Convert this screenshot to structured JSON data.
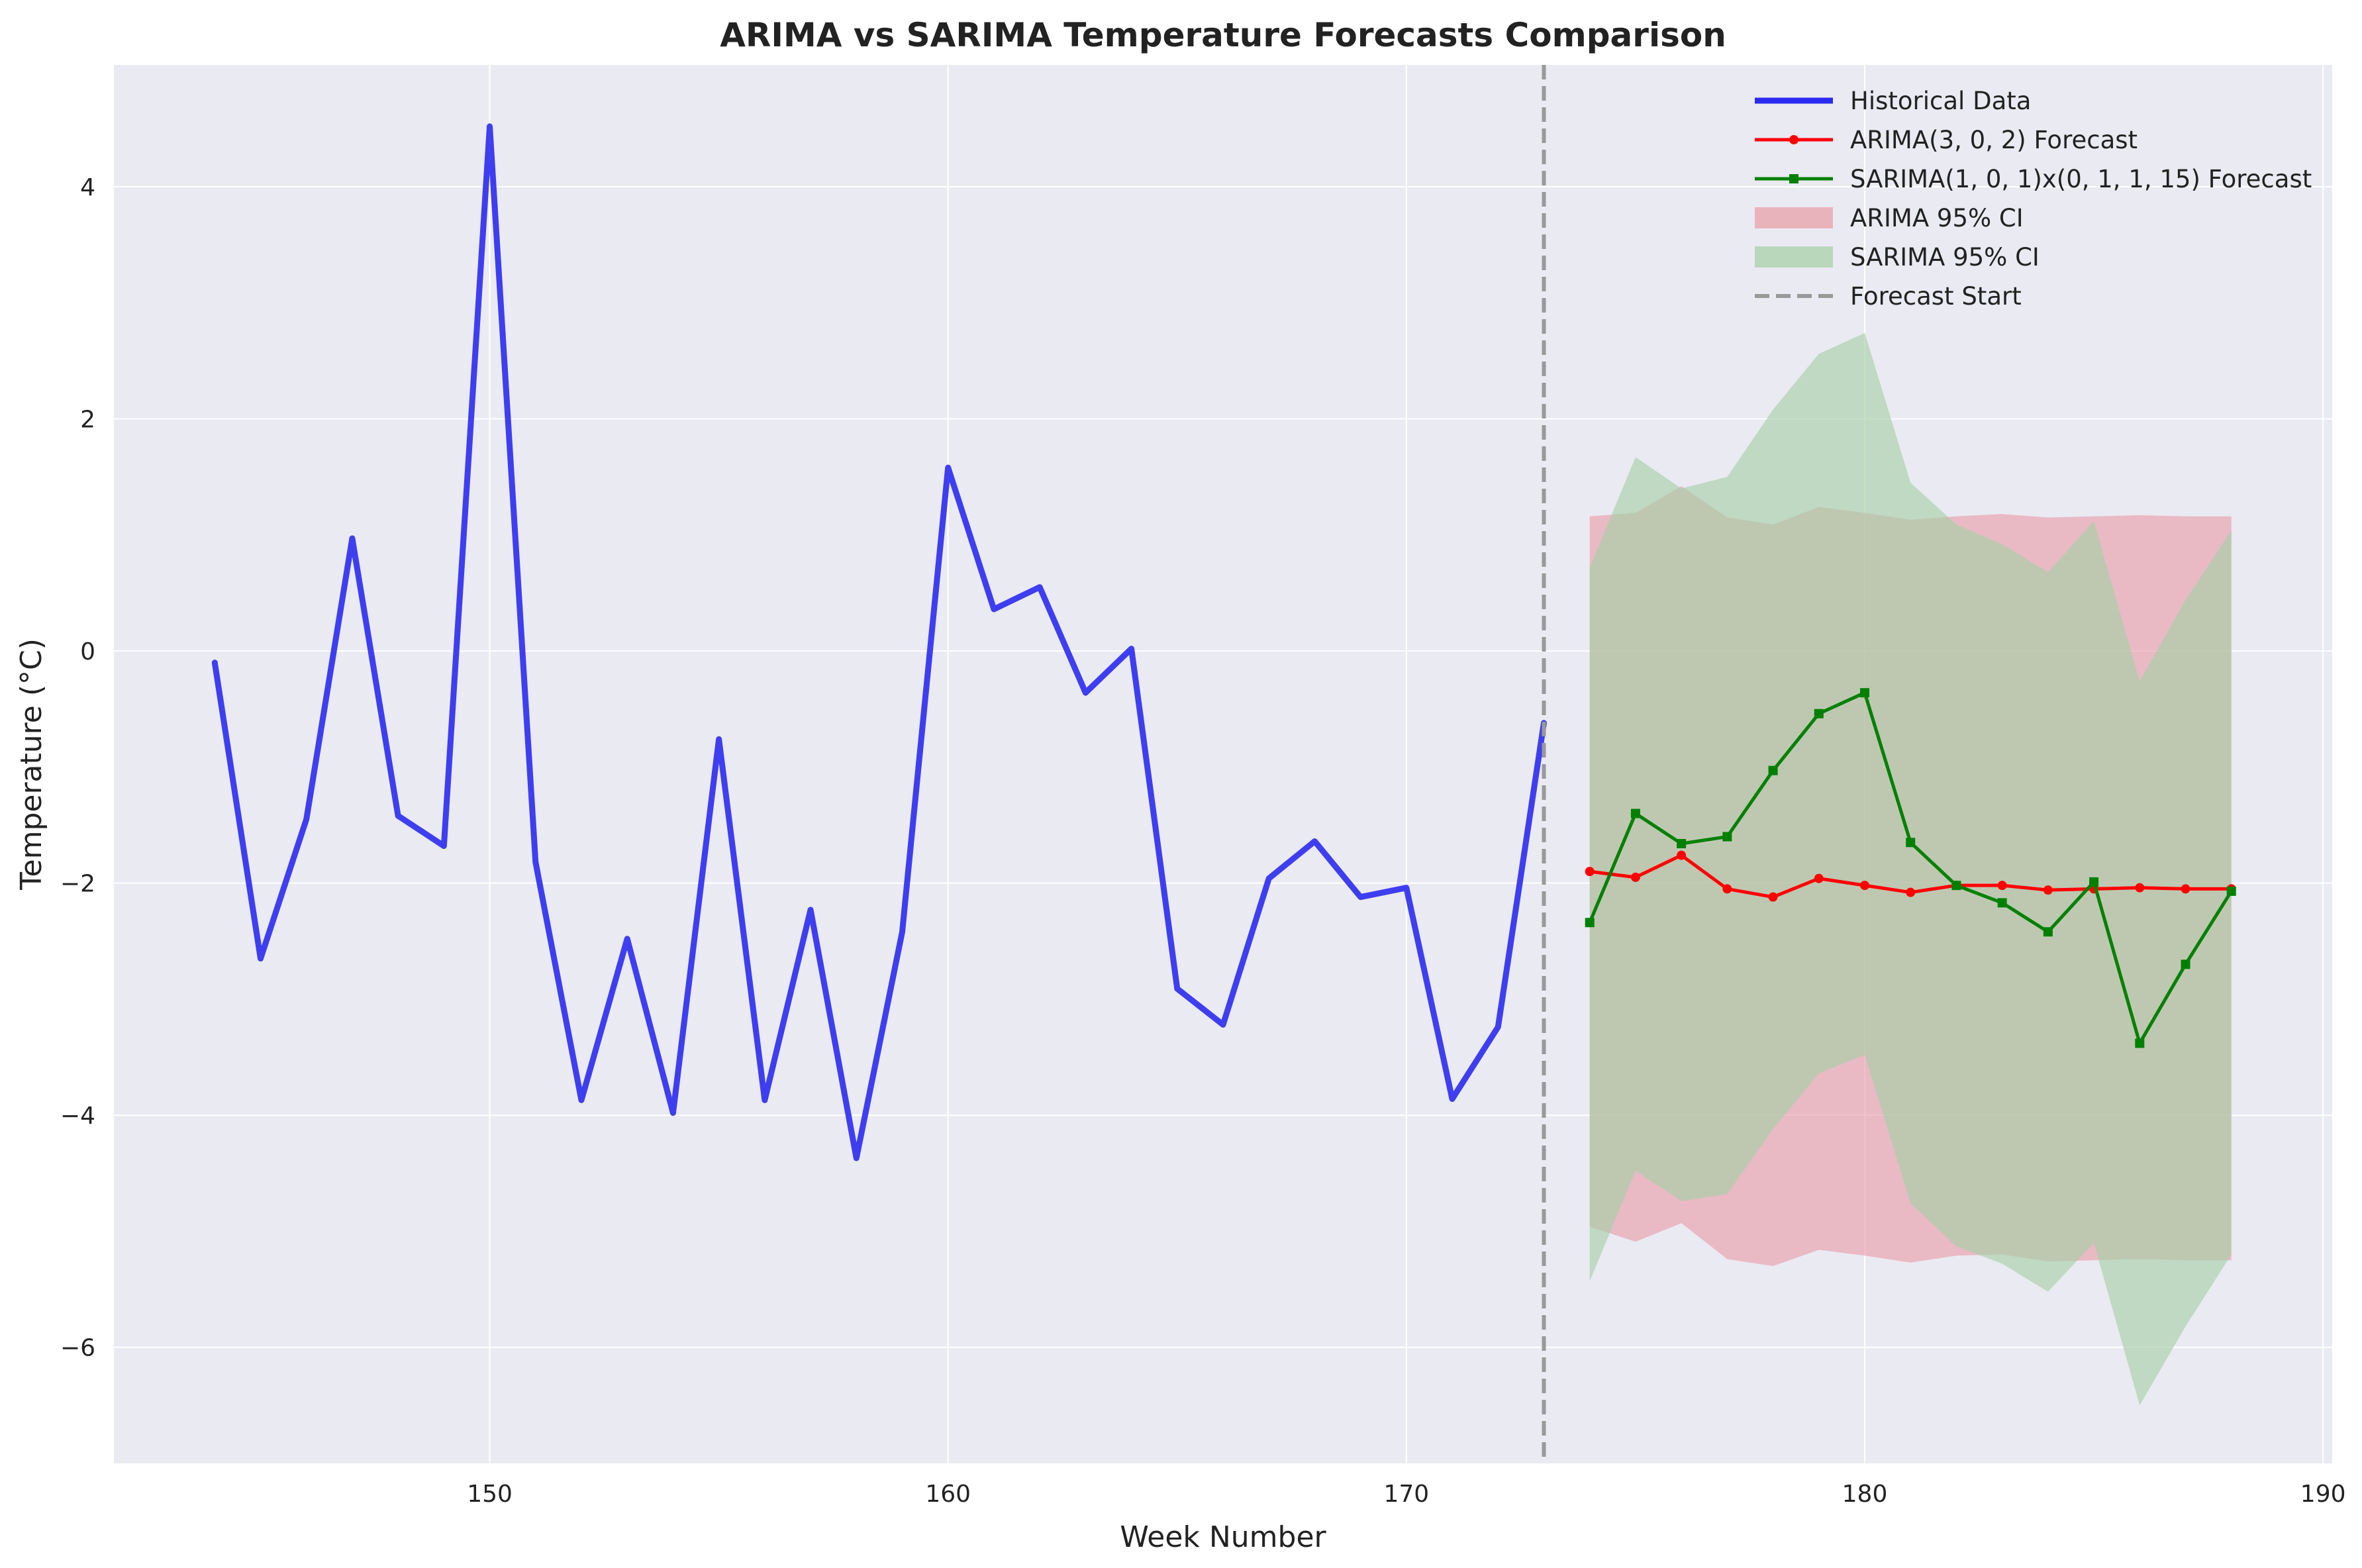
{
  "chart_data": {
    "type": "line",
    "title": "ARIMA vs SARIMA Temperature Forecasts Comparison",
    "xlabel": "Week Number",
    "ylabel": "Temperature (°C)",
    "xlim": [
      141.8,
      190.2
    ],
    "ylim": [
      -7.0,
      5.05
    ],
    "xticks": [
      150,
      160,
      170,
      180,
      190
    ],
    "yticks": [
      -6,
      -4,
      -2,
      0,
      2,
      4
    ],
    "grid": true,
    "legend_position": "top-right",
    "forecast_start": 173,
    "series": [
      {
        "name": "Historical Data",
        "color": "#2b2bf0",
        "x": [
          144,
          145,
          146,
          147,
          148,
          149,
          150,
          151,
          152,
          153,
          154,
          155,
          156,
          157,
          158,
          159,
          160,
          161,
          162,
          163,
          164,
          165,
          166,
          167,
          168,
          169,
          170,
          171,
          172,
          173
        ],
        "values": [
          -0.1,
          -2.65,
          -1.45,
          0.97,
          -1.42,
          -1.68,
          4.52,
          -1.82,
          -3.87,
          -2.48,
          -3.98,
          -0.76,
          -3.87,
          -2.23,
          -4.37,
          -2.42,
          1.58,
          0.36,
          0.55,
          -0.36,
          0.02,
          -2.91,
          -3.22,
          -1.96,
          -1.64,
          -2.12,
          -2.04,
          -3.86,
          -3.24,
          -0.62
        ]
      },
      {
        "name": "ARIMA(3, 0, 2) Forecast",
        "color": "#ff0000",
        "x": [
          174,
          175,
          176,
          177,
          178,
          179,
          180,
          181,
          182,
          183,
          184,
          185,
          186,
          187,
          188
        ],
        "values": [
          -1.9,
          -1.95,
          -1.76,
          -2.05,
          -2.12,
          -1.96,
          -2.02,
          -2.08,
          -2.02,
          -2.02,
          -2.06,
          -2.05,
          -2.04,
          -2.05,
          -2.05
        ]
      },
      {
        "name": "SARIMA(1, 0, 1)x(0, 1, 1, 15) Forecast",
        "color": "#008000",
        "x": [
          174,
          175,
          176,
          177,
          178,
          179,
          180,
          181,
          182,
          183,
          184,
          185,
          186,
          187,
          188
        ],
        "values": [
          -2.34,
          -1.4,
          -1.66,
          -1.6,
          -1.03,
          -0.54,
          -0.36,
          -1.65,
          -2.02,
          -2.17,
          -2.42,
          -1.99,
          -3.38,
          -2.7,
          -2.07
        ]
      }
    ],
    "bands": [
      {
        "name": "ARIMA 95% CI",
        "color": "#e8a0aa",
        "x": [
          174,
          175,
          176,
          177,
          178,
          179,
          180,
          181,
          182,
          183,
          184,
          185,
          186,
          187,
          188
        ],
        "upper": [
          1.16,
          1.19,
          1.42,
          1.15,
          1.09,
          1.24,
          1.19,
          1.13,
          1.16,
          1.18,
          1.15,
          1.16,
          1.17,
          1.16,
          1.16
        ],
        "lower": [
          -4.96,
          -5.09,
          -4.93,
          -5.24,
          -5.3,
          -5.16,
          -5.21,
          -5.27,
          -5.21,
          -5.2,
          -5.26,
          -5.25,
          -5.24,
          -5.25,
          -5.25
        ]
      },
      {
        "name": "SARIMA 95% CI",
        "color": "#a8d0a8",
        "x": [
          174,
          175,
          176,
          177,
          178,
          179,
          180,
          181,
          182,
          183,
          184,
          185,
          186,
          187,
          188
        ],
        "upper": [
          0.72,
          1.67,
          1.4,
          1.5,
          2.08,
          2.56,
          2.74,
          1.45,
          1.09,
          0.92,
          0.68,
          1.12,
          -0.26,
          0.44,
          1.04
        ],
        "lower": [
          -5.43,
          -4.48,
          -4.74,
          -4.68,
          -4.12,
          -3.64,
          -3.48,
          -4.76,
          -5.13,
          -5.28,
          -5.52,
          -5.1,
          -6.5,
          -5.82,
          -5.2
        ]
      }
    ]
  }
}
